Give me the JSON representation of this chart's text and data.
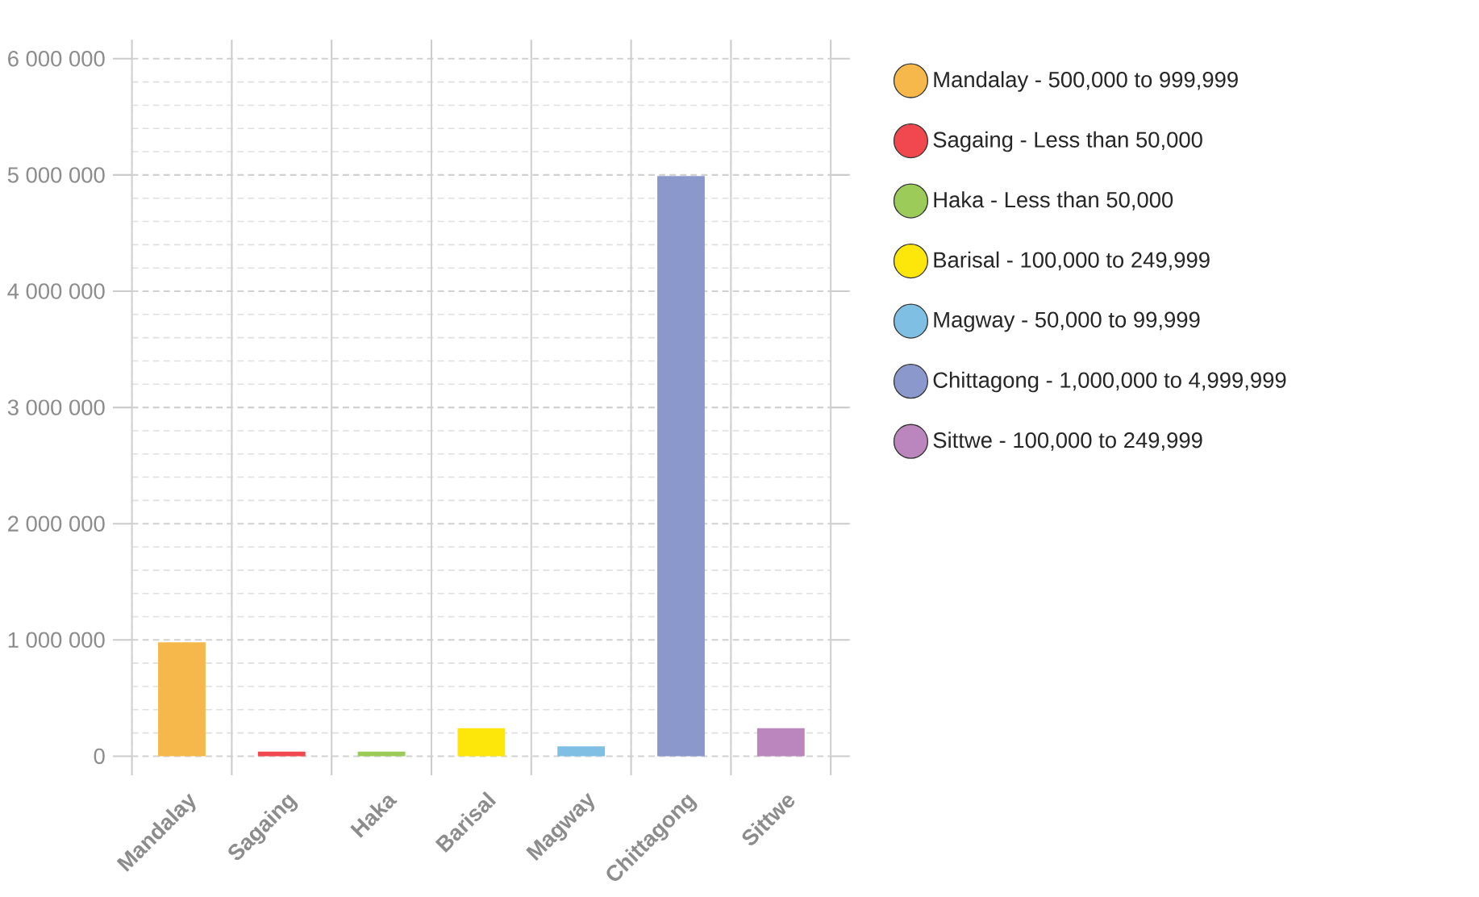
{
  "chart_data": {
    "type": "bar",
    "categories": [
      "Mandalay",
      "Sagaing",
      "Haka",
      "Barisal",
      "Magway",
      "Chittagong",
      "Sittwe"
    ],
    "series": [
      {
        "name": "Mandalay - 500,000 to 999,999",
        "color": "#f7b84b",
        "values": [
          980000,
          null,
          null,
          null,
          null,
          null,
          null
        ]
      },
      {
        "name": "Sagaing - Less than 50,000",
        "color": "#f0484e",
        "values": [
          null,
          40000,
          null,
          null,
          null,
          null,
          null
        ]
      },
      {
        "name": "Haka - Less than 50,000",
        "color": "#9ccb59",
        "values": [
          null,
          null,
          40000,
          null,
          null,
          null,
          null
        ]
      },
      {
        "name": "Barisal - 100,000 to 249,999",
        "color": "#fde60a",
        "values": [
          null,
          null,
          null,
          240000,
          null,
          null,
          null
        ]
      },
      {
        "name": "Magway - 50,000 to 99,999",
        "color": "#7ebfe3",
        "values": [
          null,
          null,
          null,
          null,
          85000,
          null,
          null
        ]
      },
      {
        "name": "Chittagong - 1,000,000 to 4,999,999",
        "color": "#8a98cc",
        "values": [
          null,
          null,
          null,
          null,
          null,
          4990000,
          null
        ]
      },
      {
        "name": "Sittwe - 100,000 to 249,999",
        "color": "#bb86bd",
        "values": [
          null,
          null,
          null,
          null,
          null,
          null,
          240000
        ]
      }
    ],
    "ylim": [
      0,
      6000000
    ],
    "yticks": [
      {
        "value": 0,
        "label": "0"
      },
      {
        "value": 1000000,
        "label": "1 000 000"
      },
      {
        "value": 2000000,
        "label": "2 000 000"
      },
      {
        "value": 3000000,
        "label": "3 000 000"
      },
      {
        "value": 4000000,
        "label": "4 000 000"
      },
      {
        "value": 5000000,
        "label": "5 000 000"
      },
      {
        "value": 6000000,
        "label": "6 000 000"
      }
    ],
    "grid": true,
    "legend": "top right"
  }
}
